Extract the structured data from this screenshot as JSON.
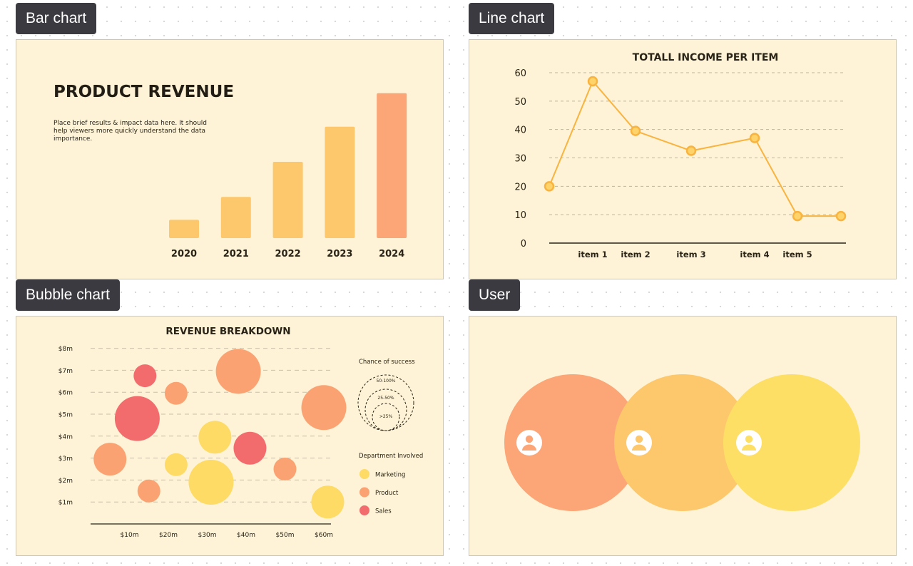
{
  "tabs": {
    "bar": "Bar chart",
    "line": "Line chart",
    "bubble": "Bubble chart",
    "user": "User"
  },
  "bar_card": {
    "title": "PRODUCT REVENUE",
    "description": "Place brief results & impact data here. It should help viewers more quickly understand the data importance."
  },
  "chart_data": [
    {
      "type": "bar",
      "title": "PRODUCT REVENUE",
      "categories": [
        "2020",
        "2021",
        "2022",
        "2023",
        "2024"
      ],
      "values": [
        12,
        27,
        50,
        73,
        95
      ],
      "colors": [
        "#fdc76b",
        "#fdc76b",
        "#fdc76b",
        "#fdc76b",
        "#fca577"
      ],
      "ylim": [
        0,
        100
      ],
      "grid": false
    },
    {
      "type": "line",
      "title": "TOTALL INCOME PER ITEM",
      "x_labels": [
        "",
        "item 1",
        "item 2",
        "item 3",
        "item 4",
        "item 5",
        ""
      ],
      "values": [
        20,
        57,
        39.5,
        32.5,
        37,
        9.5,
        9.5
      ],
      "y_ticks": [
        0,
        10,
        20,
        30,
        40,
        50,
        60
      ],
      "ylim": [
        0,
        60
      ],
      "color": "#f9b33f",
      "grid": true
    },
    {
      "type": "scatter",
      "title": "REVENUE BREAKDOWN",
      "x_ticks": [
        "$10m",
        "$20m",
        "$30m",
        "$40m",
        "$50m",
        "$60m"
      ],
      "y_ticks": [
        "$1m",
        "$2m",
        "$3m",
        "$4m",
        "$5m",
        "$6m",
        "$7m",
        "$8m"
      ],
      "xlim": [
        0,
        65
      ],
      "ylim": [
        0,
        8
      ],
      "points": [
        {
          "x": 14,
          "y": 6.75,
          "size": 1,
          "dept": "Sales"
        },
        {
          "x": 22,
          "y": 5.95,
          "size": 1,
          "dept": "Product"
        },
        {
          "x": 38,
          "y": 6.95,
          "size": 3,
          "dept": "Product"
        },
        {
          "x": 60,
          "y": 5.3,
          "size": 3,
          "dept": "Product"
        },
        {
          "x": 12,
          "y": 4.8,
          "size": 3,
          "dept": "Sales"
        },
        {
          "x": 32,
          "y": 3.95,
          "size": 2,
          "dept": "Marketing"
        },
        {
          "x": 41,
          "y": 3.45,
          "size": 2,
          "dept": "Sales"
        },
        {
          "x": 5,
          "y": 2.95,
          "size": 2,
          "dept": "Product"
        },
        {
          "x": 22,
          "y": 2.7,
          "size": 1,
          "dept": "Marketing"
        },
        {
          "x": 50,
          "y": 2.5,
          "size": 1,
          "dept": "Product"
        },
        {
          "x": 31,
          "y": 1.9,
          "size": 3,
          "dept": "Marketing"
        },
        {
          "x": 15,
          "y": 1.5,
          "size": 1,
          "dept": "Product"
        },
        {
          "x": 61,
          "y": 1,
          "size": 2,
          "dept": "Marketing"
        }
      ],
      "size_legend_title": "Chance of success",
      "size_legend": [
        ">25%",
        "25-50%",
        "50-100%"
      ],
      "color_legend_title": "Department Involved",
      "departments": [
        {
          "name": "Marketing",
          "color": "#fddb65"
        },
        {
          "name": "Product",
          "color": "#fba273"
        },
        {
          "name": "Sales",
          "color": "#f26c6e"
        }
      ]
    }
  ],
  "user_card": {
    "circles": [
      {
        "color": "#fca577",
        "icon": "user-icon"
      },
      {
        "color": "#fdc76b",
        "icon": "user-icon"
      },
      {
        "color": "#fddf66",
        "icon": "user-icon"
      }
    ]
  }
}
